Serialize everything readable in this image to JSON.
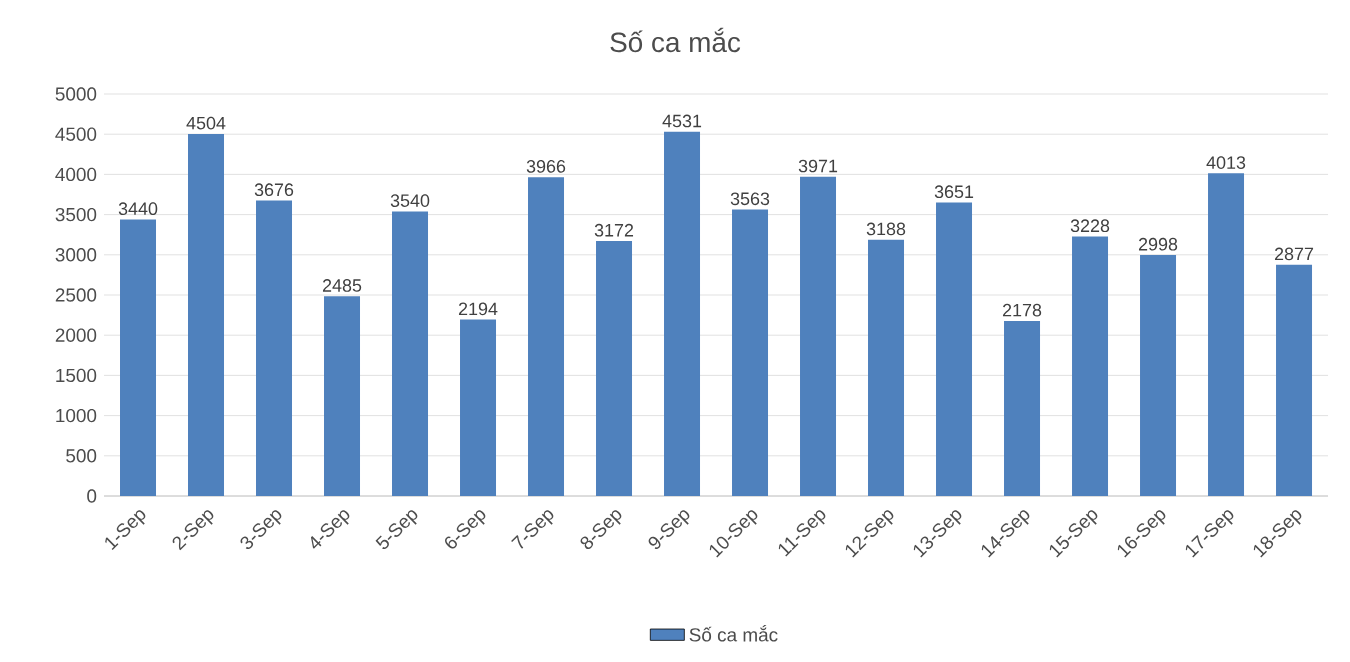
{
  "chart_data": {
    "type": "bar",
    "title": "Số ca mắc",
    "categories": [
      "1-Sep",
      "2-Sep",
      "3-Sep",
      "4-Sep",
      "5-Sep",
      "6-Sep",
      "7-Sep",
      "8-Sep",
      "9-Sep",
      "10-Sep",
      "11-Sep",
      "12-Sep",
      "13-Sep",
      "14-Sep",
      "15-Sep",
      "16-Sep",
      "17-Sep",
      "18-Sep"
    ],
    "series": [
      {
        "name": "Số ca mắc",
        "color": "#4f81bd",
        "values": [
          3440,
          4504,
          3676,
          2485,
          3540,
          2194,
          3966,
          3172,
          4531,
          3563,
          3971,
          3188,
          3651,
          2178,
          3228,
          2998,
          4013,
          2877
        ]
      }
    ],
    "ylim": [
      0,
      5000
    ],
    "yticks": [
      0,
      500,
      1000,
      1500,
      2000,
      2500,
      3000,
      3500,
      4000,
      4500,
      5000
    ],
    "grid": "y",
    "legend": "bottom",
    "data_labels": true
  }
}
